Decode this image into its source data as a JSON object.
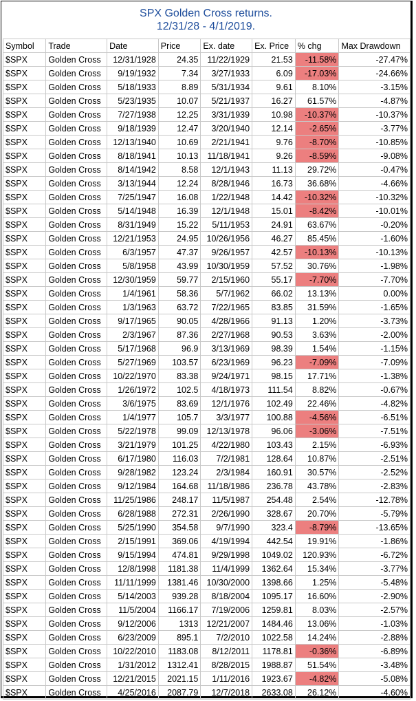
{
  "title": {
    "line1": "SPX Golden Cross returns.",
    "line2": "12/31/28 - 4/1/2019."
  },
  "columns": [
    "Symbol",
    "Trade",
    "Date",
    "Price",
    "Ex. date",
    "Ex. Price",
    "% chg",
    "Max Drawdown"
  ],
  "highlight_color": "#ec7f7f",
  "rows": [
    [
      "$SPX",
      "Golden Cross",
      "12/31/1928",
      "24.35",
      "11/22/1929",
      "21.53",
      "-11.58%",
      "-27.47%"
    ],
    [
      "$SPX",
      "Golden Cross",
      "9/19/1932",
      "7.34",
      "3/27/1933",
      "6.09",
      "-17.03%",
      "-24.66%"
    ],
    [
      "$SPX",
      "Golden Cross",
      "5/18/1933",
      "8.89",
      "5/31/1934",
      "9.61",
      "8.10%",
      "-3.15%"
    ],
    [
      "$SPX",
      "Golden Cross",
      "5/23/1935",
      "10.07",
      "5/21/1937",
      "16.27",
      "61.57%",
      "-4.87%"
    ],
    [
      "$SPX",
      "Golden Cross",
      "7/27/1938",
      "12.25",
      "3/31/1939",
      "10.98",
      "-10.37%",
      "-10.37%"
    ],
    [
      "$SPX",
      "Golden Cross",
      "9/18/1939",
      "12.47",
      "3/20/1940",
      "12.14",
      "-2.65%",
      "-3.77%"
    ],
    [
      "$SPX",
      "Golden Cross",
      "12/13/1940",
      "10.69",
      "2/21/1941",
      "9.76",
      "-8.70%",
      "-10.85%"
    ],
    [
      "$SPX",
      "Golden Cross",
      "8/18/1941",
      "10.13",
      "11/18/1941",
      "9.26",
      "-8.59%",
      "-9.08%"
    ],
    [
      "$SPX",
      "Golden Cross",
      "8/14/1942",
      "8.58",
      "12/1/1943",
      "11.13",
      "29.72%",
      "-0.47%"
    ],
    [
      "$SPX",
      "Golden Cross",
      "3/13/1944",
      "12.24",
      "8/28/1946",
      "16.73",
      "36.68%",
      "-4.66%"
    ],
    [
      "$SPX",
      "Golden Cross",
      "7/25/1947",
      "16.08",
      "1/22/1948",
      "14.42",
      "-10.32%",
      "-10.32%"
    ],
    [
      "$SPX",
      "Golden Cross",
      "5/14/1948",
      "16.39",
      "12/1/1948",
      "15.01",
      "-8.42%",
      "-10.01%"
    ],
    [
      "$SPX",
      "Golden Cross",
      "8/31/1949",
      "15.22",
      "5/11/1953",
      "24.91",
      "63.67%",
      "-0.20%"
    ],
    [
      "$SPX",
      "Golden Cross",
      "12/21/1953",
      "24.95",
      "10/26/1956",
      "46.27",
      "85.45%",
      "-1.60%"
    ],
    [
      "$SPX",
      "Golden Cross",
      "6/3/1957",
      "47.37",
      "9/26/1957",
      "42.57",
      "-10.13%",
      "-10.13%"
    ],
    [
      "$SPX",
      "Golden Cross",
      "5/8/1958",
      "43.99",
      "10/30/1959",
      "57.52",
      "30.76%",
      "-1.98%"
    ],
    [
      "$SPX",
      "Golden Cross",
      "12/30/1959",
      "59.77",
      "2/15/1960",
      "55.17",
      "-7.70%",
      "-7.70%"
    ],
    [
      "$SPX",
      "Golden Cross",
      "1/4/1961",
      "58.36",
      "5/7/1962",
      "66.02",
      "13.13%",
      "0.00%"
    ],
    [
      "$SPX",
      "Golden Cross",
      "1/3/1963",
      "63.72",
      "7/22/1965",
      "83.85",
      "31.59%",
      "-1.65%"
    ],
    [
      "$SPX",
      "Golden Cross",
      "9/17/1965",
      "90.05",
      "4/28/1966",
      "91.13",
      "1.20%",
      "-3.73%"
    ],
    [
      "$SPX",
      "Golden Cross",
      "2/3/1967",
      "87.36",
      "2/27/1968",
      "90.53",
      "3.63%",
      "-2.00%"
    ],
    [
      "$SPX",
      "Golden Cross",
      "5/17/1968",
      "96.9",
      "3/13/1969",
      "98.39",
      "1.54%",
      "-1.15%"
    ],
    [
      "$SPX",
      "Golden Cross",
      "5/27/1969",
      "103.57",
      "6/23/1969",
      "96.23",
      "-7.09%",
      "-7.09%"
    ],
    [
      "$SPX",
      "Golden Cross",
      "10/22/1970",
      "83.38",
      "9/24/1971",
      "98.15",
      "17.71%",
      "-1.38%"
    ],
    [
      "$SPX",
      "Golden Cross",
      "1/26/1972",
      "102.5",
      "4/18/1973",
      "111.54",
      "8.82%",
      "-0.67%"
    ],
    [
      "$SPX",
      "Golden Cross",
      "3/6/1975",
      "83.69",
      "12/1/1976",
      "102.49",
      "22.46%",
      "-4.82%"
    ],
    [
      "$SPX",
      "Golden Cross",
      "1/4/1977",
      "105.7",
      "3/3/1977",
      "100.88",
      "-4.56%",
      "-6.51%"
    ],
    [
      "$SPX",
      "Golden Cross",
      "5/22/1978",
      "99.09",
      "12/13/1978",
      "96.06",
      "-3.06%",
      "-7.51%"
    ],
    [
      "$SPX",
      "Golden Cross",
      "3/21/1979",
      "101.25",
      "4/22/1980",
      "103.43",
      "2.15%",
      "-6.93%"
    ],
    [
      "$SPX",
      "Golden Cross",
      "6/17/1980",
      "116.03",
      "7/2/1981",
      "128.64",
      "10.87%",
      "-2.51%"
    ],
    [
      "$SPX",
      "Golden Cross",
      "9/28/1982",
      "123.24",
      "2/3/1984",
      "160.91",
      "30.57%",
      "-2.52%"
    ],
    [
      "$SPX",
      "Golden Cross",
      "9/12/1984",
      "164.68",
      "11/18/1986",
      "236.78",
      "43.78%",
      "-2.83%"
    ],
    [
      "$SPX",
      "Golden Cross",
      "11/25/1986",
      "248.17",
      "11/5/1987",
      "254.48",
      "2.54%",
      "-12.78%"
    ],
    [
      "$SPX",
      "Golden Cross",
      "6/28/1988",
      "272.31",
      "2/26/1990",
      "328.67",
      "20.70%",
      "-5.79%"
    ],
    [
      "$SPX",
      "Golden Cross",
      "5/25/1990",
      "354.58",
      "9/7/1990",
      "323.4",
      "-8.79%",
      "-13.65%"
    ],
    [
      "$SPX",
      "Golden Cross",
      "2/15/1991",
      "369.06",
      "4/19/1994",
      "442.54",
      "19.91%",
      "-1.86%"
    ],
    [
      "$SPX",
      "Golden Cross",
      "9/15/1994",
      "474.81",
      "9/29/1998",
      "1049.02",
      "120.93%",
      "-6.72%"
    ],
    [
      "$SPX",
      "Golden Cross",
      "12/8/1998",
      "1181.38",
      "11/4/1999",
      "1362.64",
      "15.34%",
      "-3.77%"
    ],
    [
      "$SPX",
      "Golden Cross",
      "11/11/1999",
      "1381.46",
      "10/30/2000",
      "1398.66",
      "1.25%",
      "-5.48%"
    ],
    [
      "$SPX",
      "Golden Cross",
      "5/14/2003",
      "939.28",
      "8/18/2004",
      "1095.17",
      "16.60%",
      "-2.90%"
    ],
    [
      "$SPX",
      "Golden Cross",
      "11/5/2004",
      "1166.17",
      "7/19/2006",
      "1259.81",
      "8.03%",
      "-2.57%"
    ],
    [
      "$SPX",
      "Golden Cross",
      "9/12/2006",
      "1313",
      "12/21/2007",
      "1484.46",
      "13.06%",
      "-1.03%"
    ],
    [
      "$SPX",
      "Golden Cross",
      "6/23/2009",
      "895.1",
      "7/2/2010",
      "1022.58",
      "14.24%",
      "-2.88%"
    ],
    [
      "$SPX",
      "Golden Cross",
      "10/22/2010",
      "1183.08",
      "8/12/2011",
      "1178.81",
      "-0.36%",
      "-6.89%"
    ],
    [
      "$SPX",
      "Golden Cross",
      "1/31/2012",
      "1312.41",
      "8/28/2015",
      "1988.87",
      "51.54%",
      "-3.48%"
    ],
    [
      "$SPX",
      "Golden Cross",
      "12/21/2015",
      "2021.15",
      "1/11/2016",
      "1923.67",
      "-4.82%",
      "-5.08%"
    ],
    [
      "$SPX",
      "Golden Cross",
      "4/25/2016",
      "2087.79",
      "12/7/2018",
      "2633.08",
      "26.12%",
      "-4.60%"
    ]
  ]
}
